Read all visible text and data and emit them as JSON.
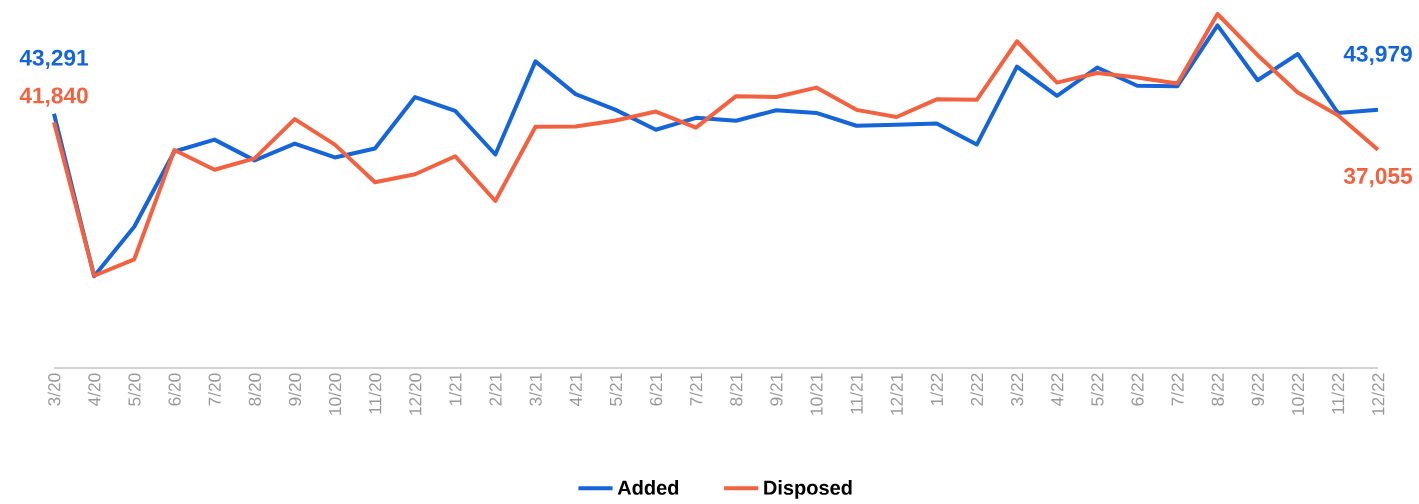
{
  "chart_data": {
    "type": "line",
    "categories": [
      "3/20",
      "4/20",
      "5/20",
      "6/20",
      "7/20",
      "8/20",
      "9/20",
      "10/20",
      "11/20",
      "12/20",
      "1/21",
      "2/21",
      "3/21",
      "4/21",
      "5/21",
      "6/21",
      "7/21",
      "8/21",
      "9/21",
      "10/21",
      "11/21",
      "12/21",
      "1/22",
      "2/22",
      "3/22",
      "4/22",
      "5/22",
      "6/22",
      "7/22",
      "8/22",
      "9/22",
      "10/22",
      "11/22",
      "12/22"
    ],
    "series": [
      {
        "name": "Added",
        "color": "#1565d8",
        "values": [
          43291,
          15220,
          23770,
          36770,
          38820,
          35230,
          38130,
          35740,
          37280,
          46170,
          43780,
          36250,
          52330,
          46680,
          43950,
          40530,
          42580,
          42070,
          43900,
          43430,
          41210,
          41380,
          41620,
          37960,
          51420,
          46390,
          51270,
          48120,
          48050,
          58550,
          49080,
          53610,
          43430,
          43979
        ],
        "value_labels": [
          "43,291",
          null,
          null,
          null,
          null,
          null,
          null,
          null,
          null,
          null,
          null,
          null,
          null,
          null,
          null,
          null,
          null,
          null,
          null,
          null,
          null,
          null,
          null,
          null,
          null,
          null,
          null,
          null,
          null,
          null,
          null,
          null,
          null,
          "43,979"
        ]
      },
      {
        "name": "Disposed",
        "color": "#f26241",
        "values": [
          41840,
          15300,
          18130,
          37020,
          33620,
          35570,
          42360,
          37960,
          31460,
          32830,
          35940,
          28220,
          41040,
          41100,
          42130,
          43670,
          40890,
          46320,
          46170,
          47810,
          43960,
          42720,
          45780,
          45690,
          55810,
          48670,
          50330,
          49540,
          48500,
          60520,
          53400,
          46960,
          43020,
          37055
        ],
        "value_labels": [
          "41,840",
          null,
          null,
          null,
          null,
          null,
          null,
          null,
          null,
          null,
          null,
          null,
          null,
          null,
          null,
          null,
          null,
          null,
          null,
          null,
          null,
          null,
          null,
          null,
          null,
          null,
          null,
          null,
          null,
          null,
          null,
          null,
          null,
          "37,055"
        ]
      }
    ],
    "grid": false,
    "legend": "bottom",
    "marker": "none",
    "line_style": "solid"
  }
}
